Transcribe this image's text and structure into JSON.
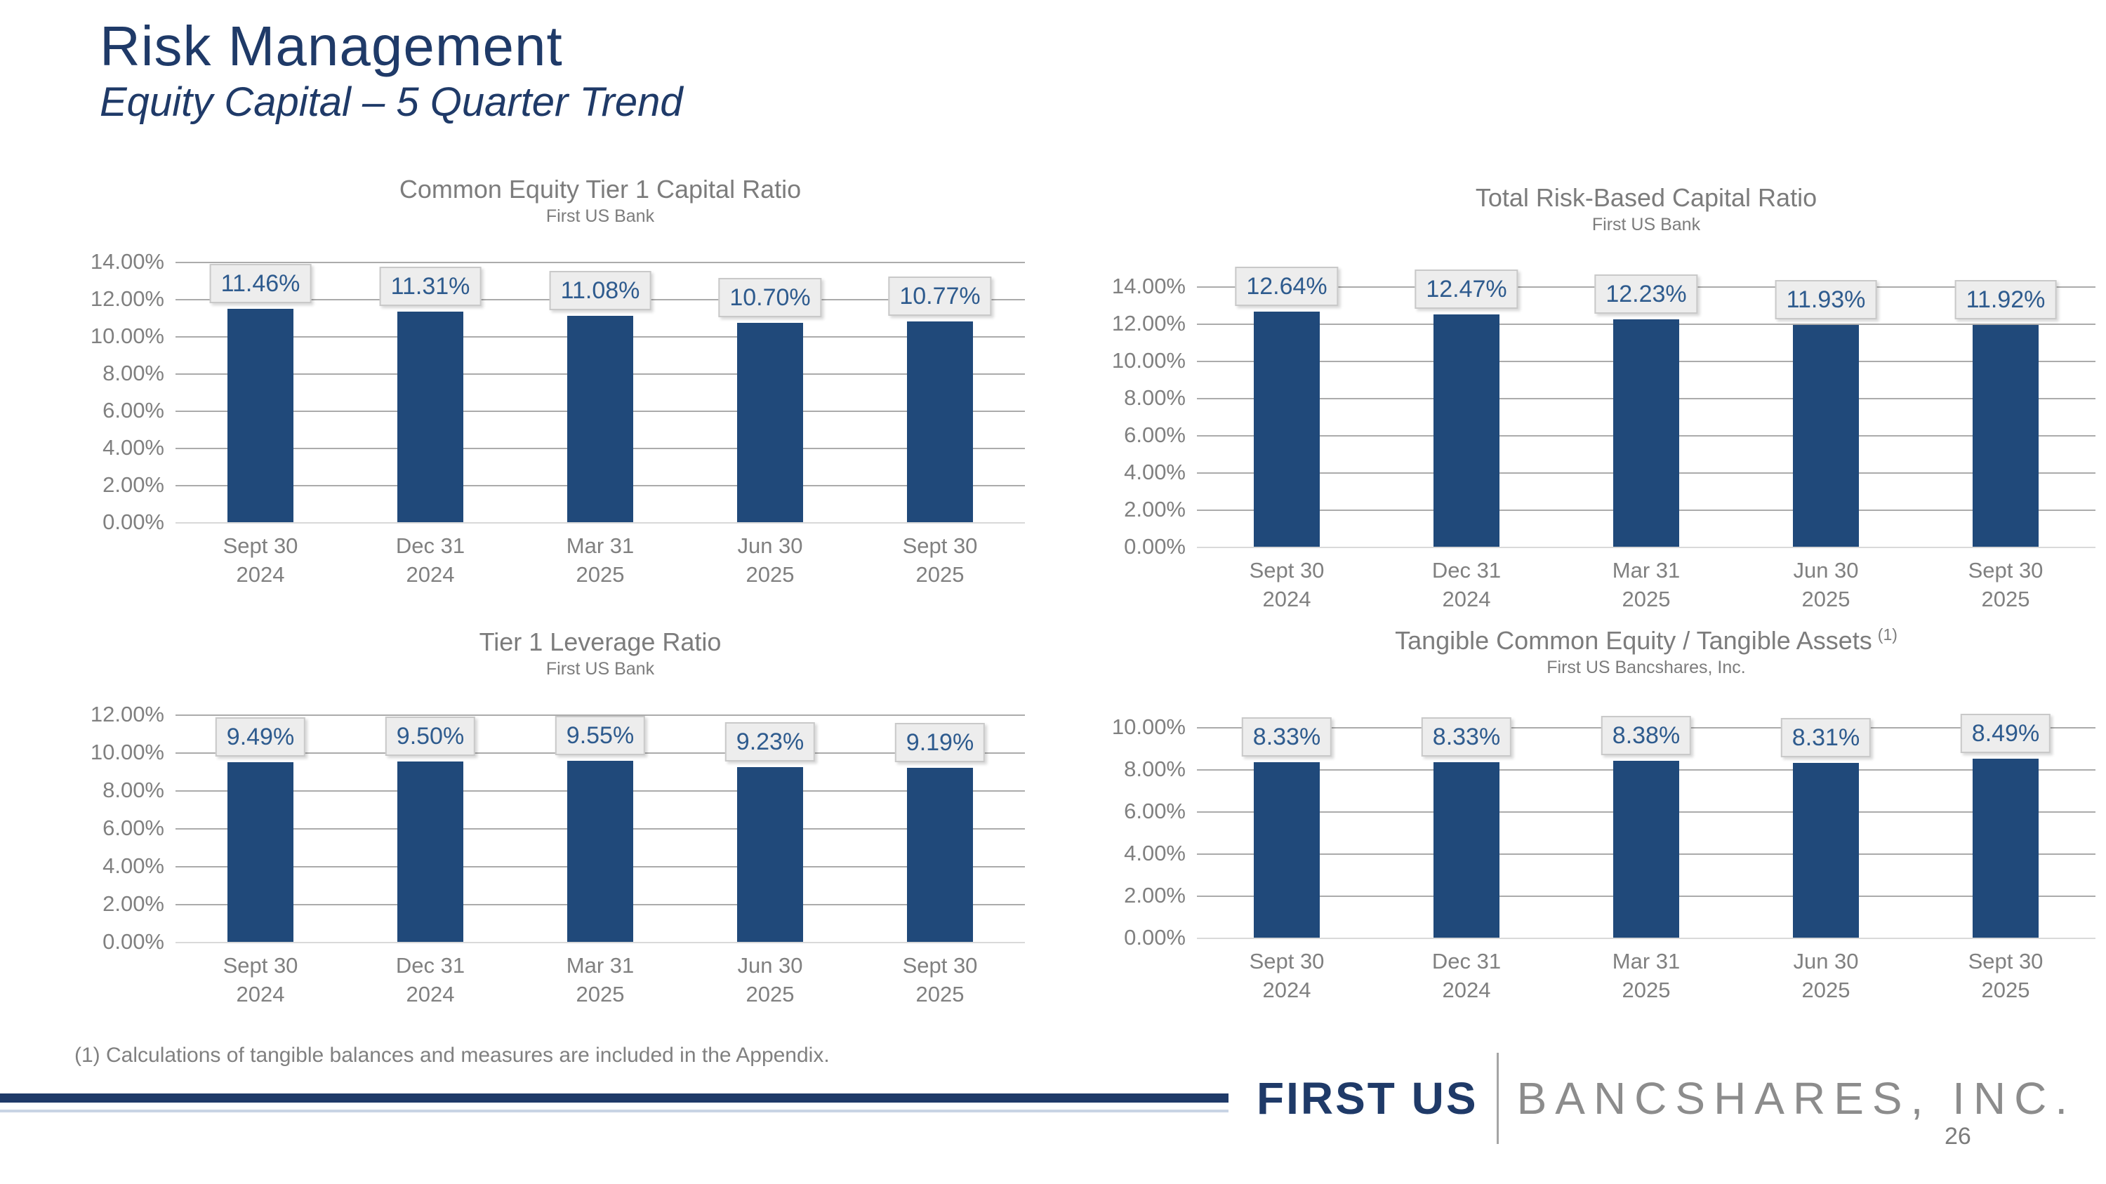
{
  "slide": {
    "title": "Risk Management",
    "subtitle": "Equity Capital – 5 Quarter Trend",
    "footnote": "(1) Calculations of tangible balances and measures are included in the Appendix.",
    "page_number": "26",
    "logo": {
      "primary": "FIRST US",
      "secondary": "BANCSHARES, INC."
    }
  },
  "colors": {
    "navy": "#1F3A68",
    "bar_fill": "#20497A",
    "value_label_text": "#2E5B8E",
    "value_label_bg": "#EDEDED",
    "value_label_border": "#C9C9C9",
    "gray_text": "#7C7C7C",
    "tick_text": "#808080",
    "gridline": "#ABABAB",
    "axis_line": "#D9D9D9"
  },
  "chart_data": [
    {
      "type": "bar",
      "title": "Common Equity Tier 1 Capital Ratio",
      "subtitle": "First US Bank",
      "categories": [
        [
          "Sept 30",
          "2024"
        ],
        [
          "Dec 31",
          "2024"
        ],
        [
          "Mar 31",
          "2025"
        ],
        [
          "Jun 30",
          "2025"
        ],
        [
          "Sept 30",
          "2025"
        ]
      ],
      "values": [
        11.46,
        11.31,
        11.08,
        10.7,
        10.77
      ],
      "labels": [
        "11.46%",
        "11.31%",
        "11.08%",
        "10.70%",
        "10.77%"
      ],
      "ylim": [
        0,
        14
      ],
      "ytick_step": 2,
      "ytick_labels": [
        "14.00%",
        "12.00%",
        "10.00%",
        "8.00%",
        "6.00%",
        "4.00%",
        "2.00%",
        "0.00%"
      ],
      "grid": true,
      "legend": "none"
    },
    {
      "type": "bar",
      "title": "Total Risk-Based Capital Ratio",
      "subtitle": "First US Bank",
      "categories": [
        [
          "Sept 30",
          "2024"
        ],
        [
          "Dec 31",
          "2024"
        ],
        [
          "Mar 31",
          "2025"
        ],
        [
          "Jun 30",
          "2025"
        ],
        [
          "Sept 30",
          "2025"
        ]
      ],
      "values": [
        12.64,
        12.47,
        12.23,
        11.93,
        11.92
      ],
      "labels": [
        "12.64%",
        "12.47%",
        "12.23%",
        "11.93%",
        "11.92%"
      ],
      "ylim": [
        0,
        14
      ],
      "ytick_step": 2,
      "ytick_labels": [
        "14.00%",
        "12.00%",
        "10.00%",
        "8.00%",
        "6.00%",
        "4.00%",
        "2.00%",
        "0.00%"
      ],
      "grid": true,
      "legend": "none"
    },
    {
      "type": "bar",
      "title": "Tier 1 Leverage Ratio",
      "subtitle": "First US Bank",
      "categories": [
        [
          "Sept 30",
          "2024"
        ],
        [
          "Dec 31",
          "2024"
        ],
        [
          "Mar 31",
          "2025"
        ],
        [
          "Jun 30",
          "2025"
        ],
        [
          "Sept 30",
          "2025"
        ]
      ],
      "values": [
        9.49,
        9.5,
        9.55,
        9.23,
        9.19
      ],
      "labels": [
        "9.49%",
        "9.50%",
        "9.55%",
        "9.23%",
        "9.19%"
      ],
      "ylim": [
        0,
        12
      ],
      "ytick_step": 2,
      "ytick_labels": [
        "12.00%",
        "10.00%",
        "8.00%",
        "6.00%",
        "4.00%",
        "2.00%",
        "0.00%"
      ],
      "grid": true,
      "legend": "none"
    },
    {
      "type": "bar",
      "title": "Tangible Common Equity / Tangible Assets",
      "title_note": "(1)",
      "subtitle": "First US Bancshares, Inc.",
      "categories": [
        [
          "Sept 30",
          "2024"
        ],
        [
          "Dec 31",
          "2024"
        ],
        [
          "Mar 31",
          "2025"
        ],
        [
          "Jun 30",
          "2025"
        ],
        [
          "Sept 30",
          "2025"
        ]
      ],
      "values": [
        8.33,
        8.33,
        8.38,
        8.31,
        8.49
      ],
      "labels": [
        "8.33%",
        "8.33%",
        "8.38%",
        "8.31%",
        "8.49%"
      ],
      "ylim": [
        0,
        10
      ],
      "ytick_step": 2,
      "ytick_labels": [
        "10.00%",
        "8.00%",
        "6.00%",
        "4.00%",
        "2.00%",
        "0.00%"
      ],
      "grid": true,
      "legend": "none"
    }
  ]
}
